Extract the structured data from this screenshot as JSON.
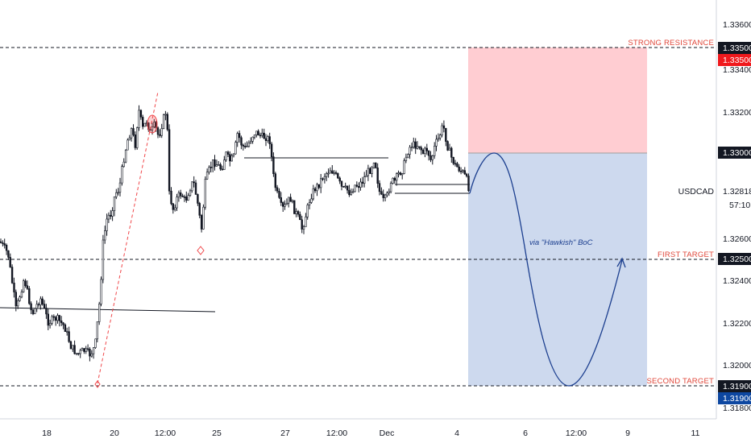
{
  "chart_data": {
    "type": "candlestick",
    "symbol": "USDCAD",
    "y_range": [
      1.3176,
      1.3375
    ],
    "y_ticks": [
      "1.33600",
      "1.33400",
      "1.33200",
      "1.33000",
      "1.32600",
      "1.32400",
      "1.32200",
      "1.32000",
      "1.31800"
    ],
    "x_ticks": [
      "18",
      "20",
      "12:00",
      "25",
      "27",
      "12:00",
      "Dec",
      "4",
      "6",
      "12:00",
      "9",
      "11"
    ],
    "price_badges": [
      {
        "value": "1.33500",
        "style": "red"
      },
      {
        "value": "1.33000",
        "style": "dark"
      },
      {
        "value": "1.32818",
        "style": "white",
        "label": "USDCAD",
        "countdown": "57:10"
      },
      {
        "value": "1.32500",
        "style": "dark"
      },
      {
        "value": "1.31900",
        "style": "dark"
      },
      {
        "value": "1.31900",
        "style": "navy"
      }
    ],
    "levels": [
      {
        "price": 1.335,
        "label": "STRONG RESISTANCE"
      },
      {
        "price": 1.325,
        "label": "FIRST TARGET"
      },
      {
        "price": 1.319,
        "label": "SECOND TARGET"
      }
    ],
    "zones": [
      {
        "type": "stop",
        "from": 1.33,
        "to": 1.335,
        "color": "#ffcdd2"
      },
      {
        "type": "target",
        "from": 1.319,
        "to": 1.33,
        "color": "#cdd9ee"
      }
    ],
    "annotation": "via \"Hawkish\" BoC",
    "colors": {
      "level_text": "#e0473a",
      "badge_red": "#f0191d",
      "badge_dark": "#131722",
      "badge_navy": "#0d47a1",
      "projection": "#1c3f8f",
      "trendline": "#f0474a"
    }
  }
}
